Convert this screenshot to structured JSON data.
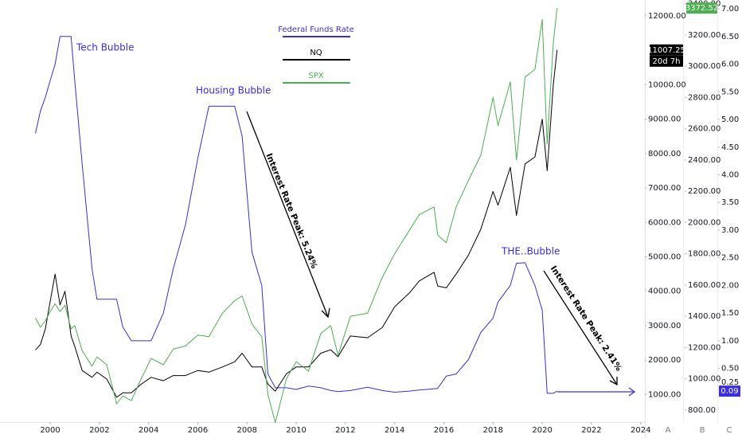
{
  "chart_data": {
    "type": "line",
    "x": [
      1999.4,
      1999.6,
      1999.8,
      2000.0,
      2000.2,
      2000.4,
      2000.6,
      2000.85,
      2001.0,
      2001.3,
      2001.7,
      2001.9,
      2002.3,
      2002.7,
      2002.95,
      2003.3,
      2003.7,
      2004.1,
      2004.6,
      2005.0,
      2005.5,
      2006.0,
      2006.45,
      2007.0,
      2007.5,
      2007.8,
      2008.2,
      2008.6,
      2008.85,
      2009.15,
      2009.6,
      2010.0,
      2010.5,
      2011.0,
      2011.4,
      2011.7,
      2012.2,
      2012.9,
      2013.5,
      2014.0,
      2014.6,
      2015.0,
      2015.6,
      2015.75,
      2016.1,
      2016.5,
      2017.0,
      2017.5,
      2018.0,
      2018.2,
      2018.7,
      2018.95,
      2019.3,
      2019.7,
      2020.0,
      2020.2,
      2020.45,
      2020.6
    ],
    "series": [
      {
        "name": "Federal Funds Rate",
        "color": "#3a2ee0",
        "axis": "y3",
        "values": [
          4.75,
          5.15,
          5.4,
          5.7,
          6.0,
          6.5,
          6.5,
          6.5,
          5.7,
          4.2,
          2.3,
          1.75,
          1.75,
          1.75,
          1.25,
          1.0,
          1.0,
          1.0,
          1.5,
          2.3,
          3.1,
          4.3,
          5.24,
          5.24,
          5.24,
          4.7,
          2.6,
          2.0,
          0.4,
          0.15,
          0.15,
          0.12,
          0.18,
          0.15,
          0.1,
          0.08,
          0.1,
          0.16,
          0.1,
          0.07,
          0.09,
          0.11,
          0.13,
          0.14,
          0.36,
          0.4,
          0.66,
          1.15,
          1.41,
          1.7,
          2.0,
          2.4,
          2.41,
          2.0,
          1.55,
          0.05,
          0.05,
          0.09
        ]
      },
      {
        "name": "NQ",
        "color": "#000000",
        "axis": "y",
        "values": [
          2290,
          2450,
          2900,
          3700,
          4500,
          3600,
          4000,
          2700,
          2400,
          1700,
          1500,
          1650,
          1450,
          920,
          1050,
          1050,
          1300,
          1500,
          1400,
          1550,
          1550,
          1700,
          1650,
          1800,
          1950,
          2200,
          1800,
          1800,
          1300,
          1100,
          1600,
          1800,
          1800,
          2200,
          2300,
          2100,
          2700,
          2650,
          2950,
          3550,
          3950,
          4300,
          4550,
          4150,
          4100,
          4500,
          5050,
          5800,
          6900,
          6500,
          7600,
          6200,
          7700,
          7900,
          9000,
          7500,
          10000,
          11007.25
        ]
      },
      {
        "name": "SPX",
        "color": "#4caf50",
        "axis": "y2",
        "values": [
          1390,
          1330,
          1370,
          1430,
          1480,
          1430,
          1470,
          1320,
          1340,
          1180,
          1080,
          1140,
          1090,
          840,
          890,
          860,
          1000,
          1130,
          1090,
          1190,
          1210,
          1280,
          1270,
          1420,
          1500,
          1530,
          1350,
          1270,
          900,
          720,
          1000,
          1110,
          1050,
          1290,
          1340,
          1150,
          1400,
          1420,
          1650,
          1800,
          1950,
          2050,
          2100,
          1920,
          1870,
          2100,
          2270,
          2430,
          2800,
          2620,
          2900,
          2400,
          2930,
          2980,
          3300,
          2500,
          3150,
          3372.52
        ]
      }
    ],
    "xlim": [
      1997.96,
      2024.17
    ],
    "xticks": [
      2000,
      2002,
      2004,
      2006,
      2008,
      2010,
      2012,
      2014,
      2016,
      2018,
      2020,
      2022,
      2024
    ],
    "ylim": [
      200,
      12460
    ],
    "yticks": [
      {
        "value": 12000,
        "label": "12000.00"
      },
      {
        "value": 10000,
        "label": "10000.00"
      },
      {
        "value": 9000,
        "label": "9000.00"
      },
      {
        "value": 8000,
        "label": "8000.00"
      },
      {
        "value": 7000,
        "label": "7000.00"
      },
      {
        "value": 6000,
        "label": "6000.00"
      },
      {
        "value": 5000,
        "label": "5000.00"
      },
      {
        "value": 4000,
        "label": "4000.00"
      },
      {
        "value": 3000,
        "label": "3000.00"
      },
      {
        "value": 2000,
        "label": "2000.00"
      },
      {
        "value": 1000,
        "label": "1000.00"
      }
    ],
    "y2lim": [
      723,
      3424
    ],
    "y2ticks": [
      {
        "value": 3400,
        "label": "3400.00"
      },
      {
        "value": 3200,
        "label": "3200.00"
      },
      {
        "value": 3000,
        "label": "3000.00"
      },
      {
        "value": 2800,
        "label": "2800.00"
      },
      {
        "value": 2600,
        "label": "2600.00"
      },
      {
        "value": 2400,
        "label": "2400.00"
      },
      {
        "value": 2200,
        "label": "2200.00"
      },
      {
        "value": 2000,
        "label": "2000.00"
      },
      {
        "value": 1800,
        "label": "1800.00"
      },
      {
        "value": 1600,
        "label": "1600.00"
      },
      {
        "value": 1400,
        "label": "1400.00"
      },
      {
        "value": 1200,
        "label": "1200.00"
      },
      {
        "value": 1000,
        "label": "1000.00"
      },
      {
        "value": 800,
        "label": "800.00"
      }
    ],
    "y3lim": [
      -0.47,
      7.16
    ],
    "y3ticks": [
      {
        "value": 7,
        "label": "7.00"
      },
      {
        "value": 6.5,
        "label": "6.50"
      },
      {
        "value": 6,
        "label": "6.00"
      },
      {
        "value": 5.5,
        "label": "5.50"
      },
      {
        "value": 5,
        "label": "5.00"
      },
      {
        "value": 4.5,
        "label": "4.50"
      },
      {
        "value": 4,
        "label": "4.00"
      },
      {
        "value": 3.5,
        "label": "3.50"
      },
      {
        "value": 3,
        "label": "3.00"
      },
      {
        "value": 2.5,
        "label": "2.50"
      },
      {
        "value": 2,
        "label": "2.00"
      },
      {
        "value": 1.5,
        "label": "1.50"
      },
      {
        "value": 1,
        "label": "1.00"
      },
      {
        "value": 0.5,
        "label": "0.50"
      },
      {
        "value": 0.25,
        "label": "0.25"
      }
    ],
    "countdown": "20d 7h",
    "axis_buttons": [
      "A",
      "B",
      "C"
    ],
    "annotations": [
      "Tech Bubble",
      "Housing Bubble",
      "THE..Bubble",
      "Interest Rate Peak:  5.24%",
      "Interest Rate Peak: 2.41%"
    ]
  }
}
